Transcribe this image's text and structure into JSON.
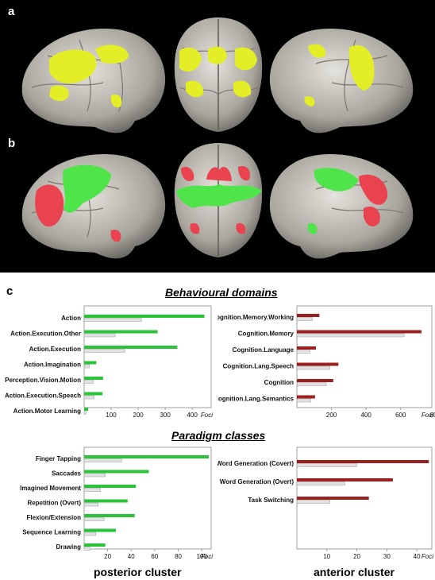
{
  "panels": {
    "a": "a",
    "b": "b",
    "c": "c"
  },
  "colors": {
    "posterior": "#2bc33a",
    "anterior": "#9c1f1f",
    "baseline": "#e2e2e2",
    "brain": "#b9b6ae",
    "overlay_a": "#e4ee26",
    "overlay_b_green": "#4ee44a",
    "overlay_b_red": "#e8434f"
  },
  "section_titles": {
    "behavioural": "Behavioural domains",
    "paradigm": "Paradigm classes"
  },
  "cluster_titles": {
    "posterior": "posterior cluster",
    "anterior": "anterior cluster"
  },
  "chart_data": [
    {
      "type": "bar",
      "orientation": "horizontal",
      "xlabel": "Foci",
      "xlim": [
        0,
        470
      ],
      "xticks": [
        100,
        200,
        300,
        400
      ],
      "categories": [
        "Action",
        "Action.Execution.Other",
        "Action.Execution",
        "Action.Imagination",
        "Perception.Vision.Motion",
        "Action.Execution.Speech",
        "Action.Motor Learning"
      ],
      "series": [
        {
          "color": "#2bc33a",
          "values": [
            445,
            272,
            345,
            45,
            70,
            68,
            15
          ]
        },
        {
          "color": "#e2e2e2",
          "values": [
            212,
            115,
            150,
            20,
            35,
            37,
            7
          ]
        }
      ]
    },
    {
      "type": "bar",
      "orientation": "horizontal",
      "xlabel": "Foci",
      "xlim": [
        0,
        780
      ],
      "xticks": [
        200,
        400,
        600,
        800
      ],
      "categories": [
        "Cognition.Memory.Working",
        "Cognition.Memory",
        "Cognition.Language",
        "Cognition.Lang.Speech",
        "Cognition",
        "Cognition.Lang.Semantics"
      ],
      "series": [
        {
          "color": "#9c1f1f",
          "values": [
            130,
            720,
            110,
            240,
            210,
            105
          ]
        },
        {
          "color": "#e2e2e2",
          "values": [
            90,
            620,
            75,
            190,
            170,
            80
          ]
        }
      ]
    },
    {
      "type": "bar",
      "orientation": "horizontal",
      "xlabel": "Foci",
      "xlim": [
        0,
        108
      ],
      "xticks": [
        20,
        40,
        60,
        80,
        100
      ],
      "categories": [
        "Finger Tapping",
        "Saccades",
        "Imagined Movement",
        "Repetition (Overt)",
        "Flexion/Extension",
        "Sequence Learning",
        "Drawing"
      ],
      "series": [
        {
          "color": "#2bc33a",
          "values": [
            106,
            55,
            44,
            37,
            43,
            27,
            18
          ]
        },
        {
          "color": "#e2e2e2",
          "values": [
            32,
            18,
            14,
            12,
            17,
            10,
            5
          ]
        }
      ]
    },
    {
      "type": "bar",
      "orientation": "horizontal",
      "xlabel": "Foci",
      "xlim": [
        0,
        45
      ],
      "xticks": [
        10,
        20,
        30,
        40
      ],
      "categories": [
        "Word Generation (Covert)",
        "Word Generation (Overt)",
        "Task Switching"
      ],
      "series": [
        {
          "color": "#9c1f1f",
          "values": [
            44,
            32,
            24
          ]
        },
        {
          "color": "#e2e2e2",
          "values": [
            20,
            16,
            11
          ]
        }
      ]
    }
  ]
}
